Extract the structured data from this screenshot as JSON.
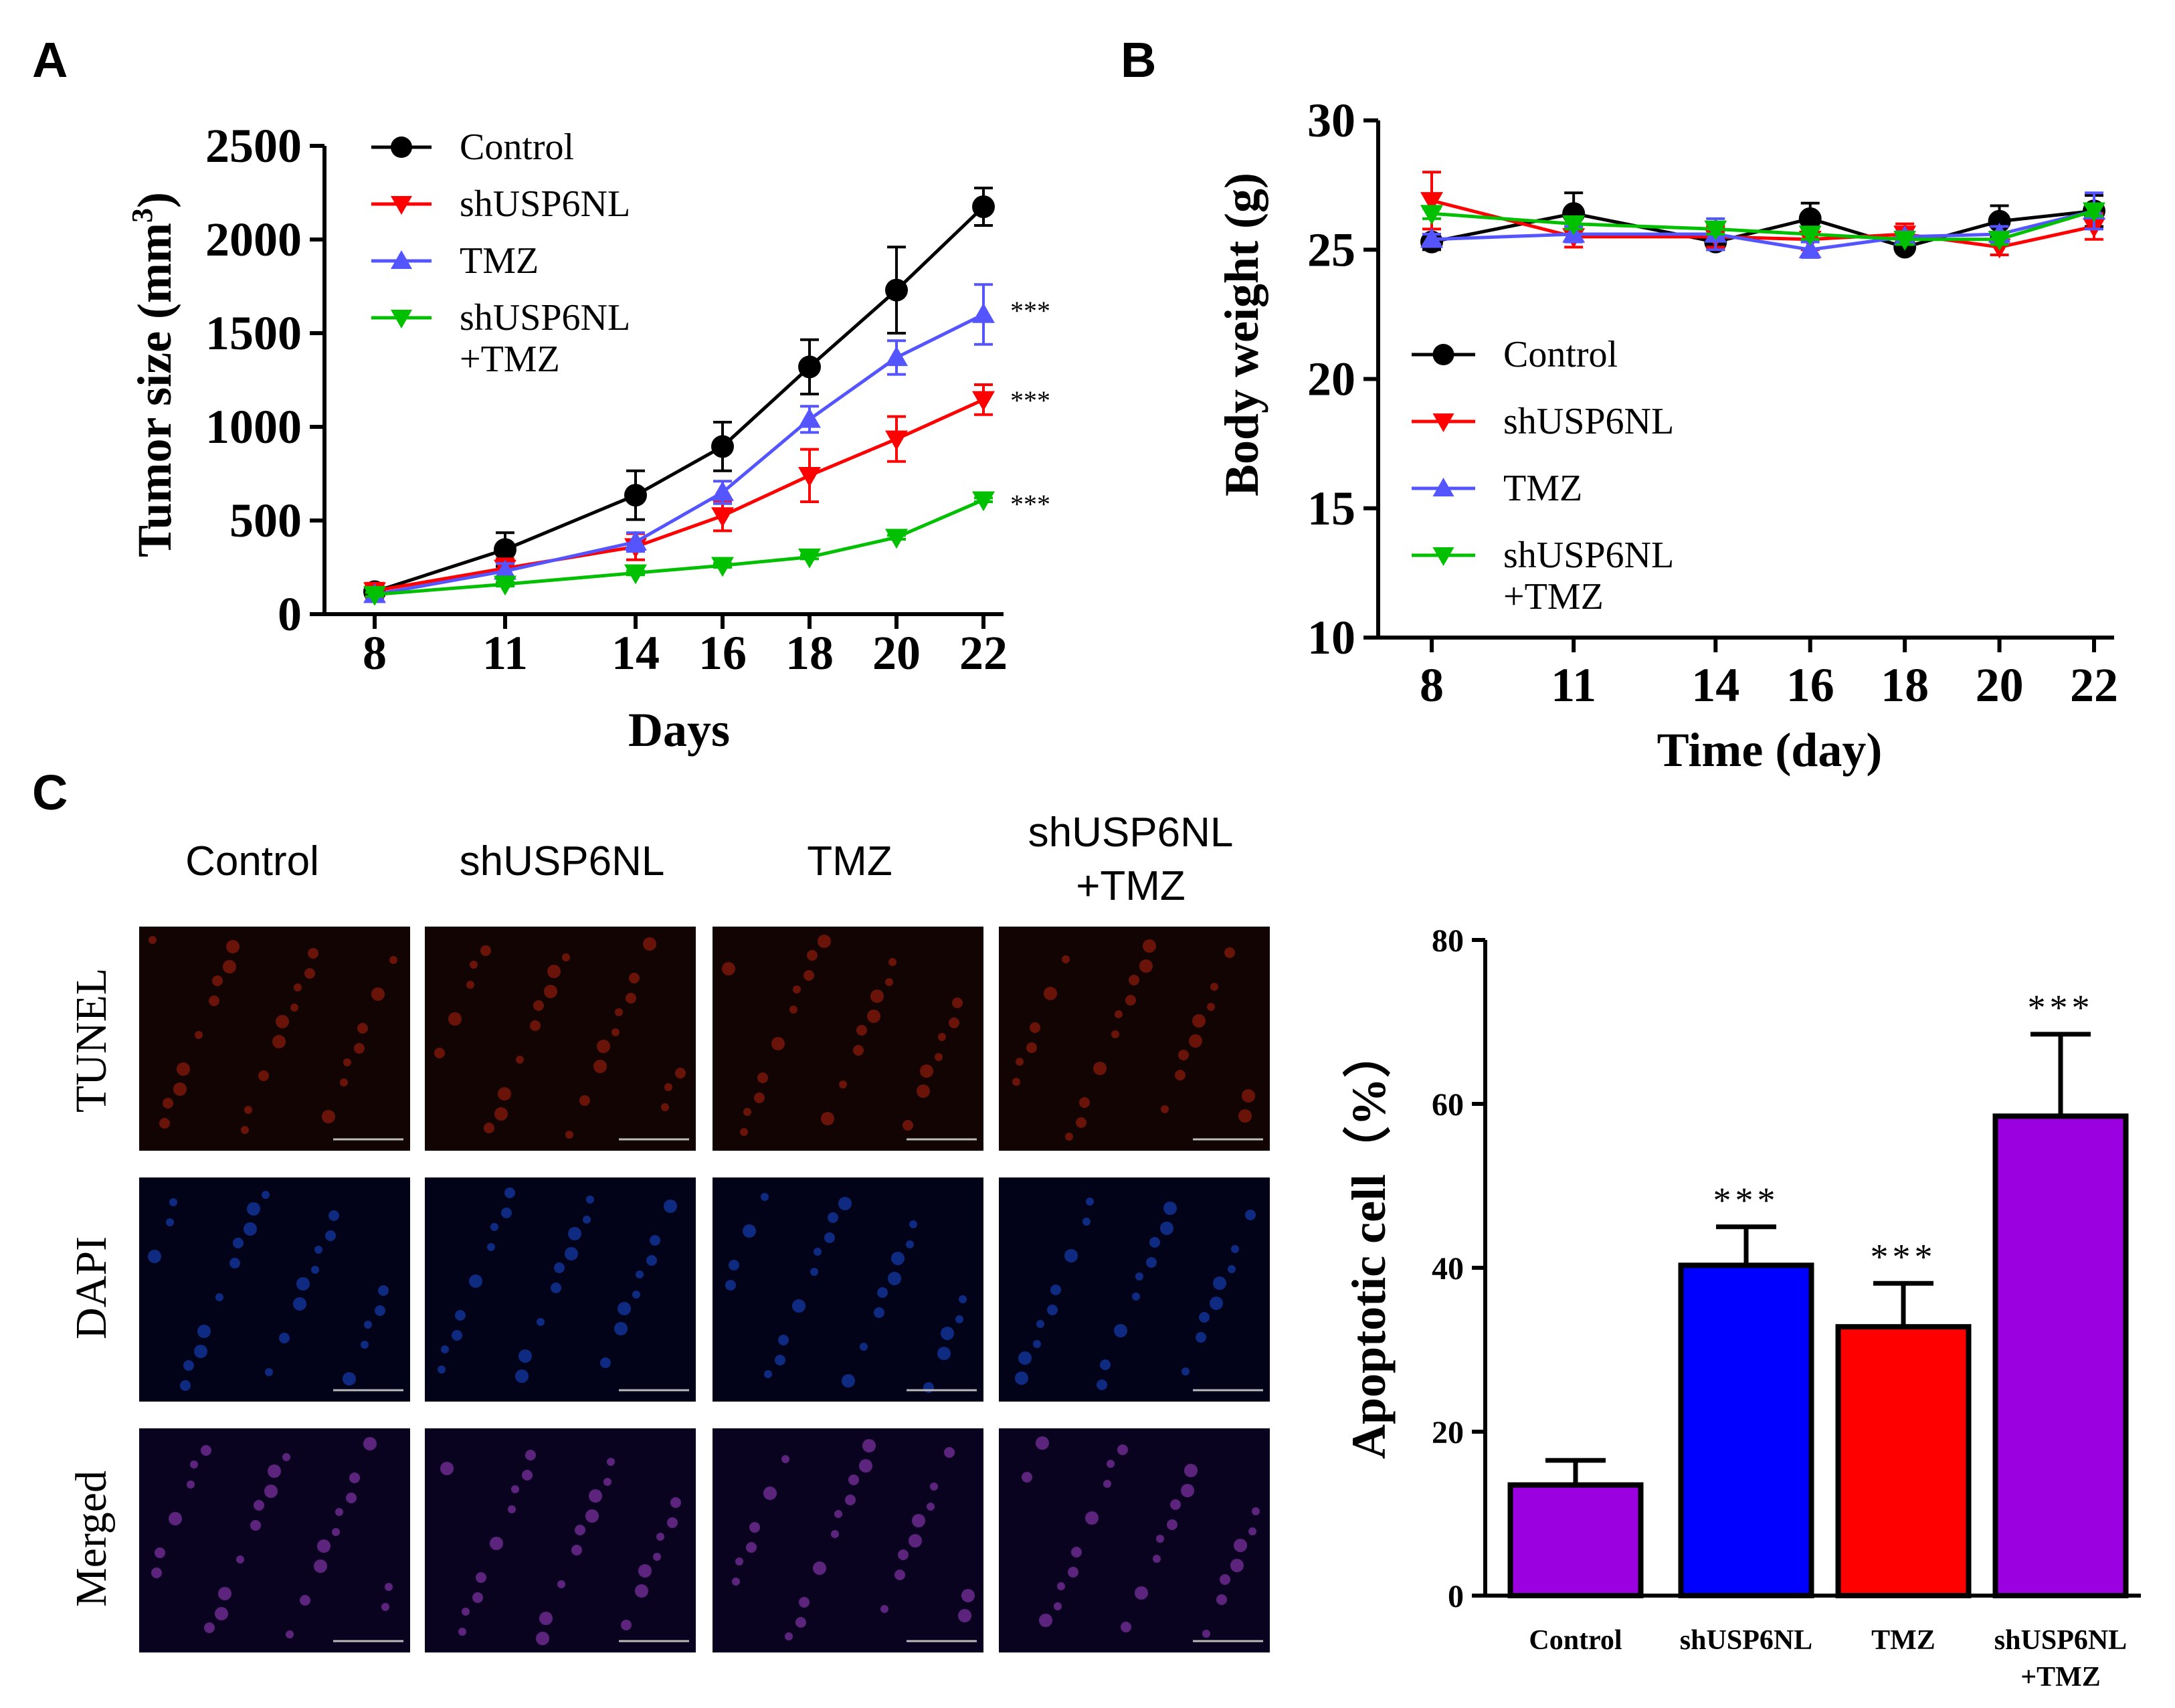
{
  "panels": {
    "A": "A",
    "B": "B",
    "C": "C"
  },
  "colors": {
    "Control": "#000000",
    "shUSP6NL": "#ff0000",
    "TMZ": "#5555ff",
    "shUSP6NL+TMZ": "#00c000",
    "bar_purple": "#9b00e0",
    "bar_blue": "#0000ff",
    "bar_red": "#ff0000"
  },
  "chart_data": [
    {
      "id": "A",
      "type": "line",
      "xlabel": "Days",
      "ylabel_main": "Tumor size (mm",
      "ylabel_sup": "3",
      "ylabel_end": ")",
      "x": [
        8,
        11,
        14,
        16,
        18,
        20,
        22
      ],
      "ylim": [
        0,
        2500
      ],
      "yticks": [
        0,
        500,
        1000,
        1500,
        2000,
        2500
      ],
      "legend": {
        "placement": "top-left",
        "entries": [
          "Control",
          "shUSP6NL",
          "TMZ",
          "shUSP6NL",
          "+TMZ"
        ]
      },
      "series": [
        {
          "name": "Control",
          "marker": "circle",
          "values": [
            120,
            345,
            635,
            895,
            1320,
            1730,
            2175
          ],
          "errors": [
            40,
            90,
            130,
            130,
            145,
            230,
            100
          ]
        },
        {
          "name": "shUSP6NL",
          "marker": "triangle-down",
          "values": [
            125,
            245,
            360,
            525,
            740,
            935,
            1145
          ],
          "errors": [
            40,
            50,
            70,
            80,
            140,
            120,
            80
          ]
        },
        {
          "name": "TMZ",
          "marker": "triangle-up",
          "values": [
            105,
            230,
            385,
            650,
            1040,
            1370,
            1600
          ],
          "errors": [
            30,
            40,
            50,
            60,
            70,
            90,
            160
          ]
        },
        {
          "name": "shUSP6NL+TMZ",
          "marker": "triangle-down",
          "values": [
            105,
            160,
            220,
            260,
            305,
            410,
            610
          ],
          "errors": [
            10,
            10,
            10,
            10,
            10,
            10,
            10
          ]
        }
      ],
      "annotations": [
        "***",
        "***",
        "***"
      ]
    },
    {
      "id": "B",
      "type": "line",
      "xlabel": "Time (day)",
      "ylabel": "Body weight (g)",
      "x": [
        8,
        11,
        14,
        16,
        18,
        20,
        22
      ],
      "ylim": [
        10,
        30
      ],
      "yticks": [
        10,
        15,
        20,
        25,
        30
      ],
      "legend": {
        "placement": "left",
        "entries": [
          "Control",
          "shUSP6NL",
          "TMZ",
          "shUSP6NL",
          "+TMZ"
        ]
      },
      "series": [
        {
          "name": "Control",
          "marker": "circle",
          "values": [
            25.3,
            26.4,
            25.3,
            26.2,
            25.1,
            26.1,
            26.5
          ],
          "errors": [
            0.3,
            0.8,
            0.3,
            0.6,
            0.2,
            0.6,
            0.6
          ]
        },
        {
          "name": "shUSP6NL",
          "marker": "triangle-down",
          "values": [
            26.9,
            25.5,
            25.5,
            25.4,
            25.6,
            25.1,
            25.9
          ],
          "errors": [
            1.1,
            0.4,
            0.4,
            0.4,
            0.4,
            0.3,
            0.5
          ]
        },
        {
          "name": "TMZ",
          "marker": "triangle-up",
          "values": [
            25.4,
            25.6,
            25.6,
            25.0,
            25.5,
            25.6,
            26.5
          ],
          "errors": [
            0.2,
            0.3,
            0.6,
            0.3,
            0.2,
            0.3,
            0.7
          ]
        },
        {
          "name": "shUSP6NL+TMZ",
          "marker": "triangle-down",
          "values": [
            26.4,
            26.0,
            25.8,
            25.6,
            25.4,
            25.4,
            26.5
          ],
          "errors": [
            0.2,
            0.2,
            0.2,
            0.2,
            0.2,
            0.2,
            0.2
          ]
        }
      ]
    },
    {
      "id": "C",
      "type": "bar",
      "ylabel": "Apoptotic cell（%）",
      "categories": [
        "Control",
        "shUSP6NL",
        "TMZ",
        "shUSP6NL",
        "+TMZ"
      ],
      "bars": [
        {
          "label": "Control",
          "value": 13.5,
          "error": 3.0,
          "color": "#9b00e0",
          "sig": ""
        },
        {
          "label": "shUSP6NL",
          "value": 40.3,
          "error": 4.7,
          "color": "#0000ff",
          "sig": "***"
        },
        {
          "label": "TMZ",
          "value": 32.8,
          "error": 5.3,
          "color": "#ff0000",
          "sig": "***"
        },
        {
          "label": "shUSP6NL+TMZ",
          "value": 58.5,
          "error": 10.0,
          "color": "#9b00e0",
          "sig": "***"
        }
      ],
      "ylim": [
        0,
        80
      ],
      "yticks": [
        0,
        20,
        40,
        60,
        80
      ]
    }
  ],
  "microscopy": {
    "columns": [
      "Control",
      "shUSP6NL",
      "TMZ",
      "shUSP6NL",
      "+TMZ"
    ],
    "rows": [
      "TUNEL",
      "DAPI",
      "Merged"
    ]
  }
}
